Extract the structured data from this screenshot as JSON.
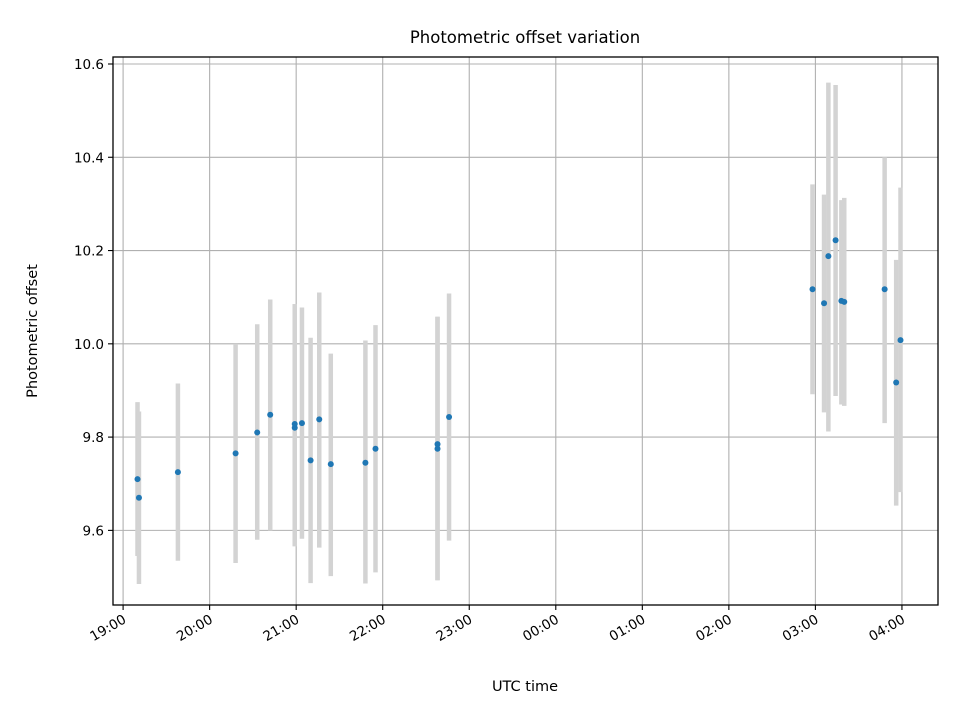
{
  "chart_data": {
    "type": "scatter",
    "title": "Photometric offset variation",
    "xlabel": "UTC time",
    "ylabel": "Photometric offset",
    "xlim": [
      "18:53",
      "04:25"
    ],
    "ylim": [
      9.44,
      10.615
    ],
    "grid": true,
    "x_ticks": [
      "19:00",
      "20:00",
      "21:00",
      "22:00",
      "23:00",
      "00:00",
      "01:00",
      "02:00",
      "03:00",
      "04:00"
    ],
    "y_ticks": [
      9.6,
      9.8,
      10.0,
      10.2,
      10.4,
      10.6
    ],
    "y_tick_labels": [
      "9.6",
      "9.8",
      "10.0",
      "10.2",
      "10.4",
      "10.6"
    ],
    "colors": {
      "marker": "#1f77b4",
      "errorbar": "#d3d3d3",
      "grid": "#b0b0b0"
    },
    "series": [
      {
        "points": [
          {
            "x": "19:10",
            "y": 9.71,
            "err": [
              9.545,
              9.875
            ]
          },
          {
            "x": "19:11",
            "y": 9.67,
            "err": [
              9.485,
              9.855
            ]
          },
          {
            "x": "19:38",
            "y": 9.725,
            "err": [
              9.535,
              9.915
            ]
          },
          {
            "x": "20:18",
            "y": 9.765,
            "err": [
              9.53,
              10.0
            ]
          },
          {
            "x": "20:33",
            "y": 9.81,
            "err": [
              9.58,
              10.042
            ]
          },
          {
            "x": "20:42",
            "y": 9.848,
            "err": [
              9.6,
              10.095
            ]
          },
          {
            "x": "20:59",
            "y": 9.82,
            "err": [
              9.566,
              10.085
            ]
          },
          {
            "x": "20:59",
            "y": 9.828,
            "err": [
              9.566,
              10.085
            ]
          },
          {
            "x": "21:04",
            "y": 9.83,
            "err": [
              9.582,
              10.078
            ]
          },
          {
            "x": "21:10",
            "y": 9.75,
            "err": [
              9.487,
              10.013
            ]
          },
          {
            "x": "21:16",
            "y": 9.838,
            "err": [
              9.563,
              10.11
            ]
          },
          {
            "x": "21:24",
            "y": 9.742,
            "err": [
              9.502,
              9.979
            ]
          },
          {
            "x": "21:48",
            "y": 9.745,
            "err": [
              9.486,
              10.007
            ]
          },
          {
            "x": "21:55",
            "y": 9.775,
            "err": [
              9.51,
              10.04
            ]
          },
          {
            "x": "22:38",
            "y": 9.775,
            "err": [
              9.493,
              10.058
            ]
          },
          {
            "x": "22:38",
            "y": 9.785,
            "err": [
              9.493,
              10.058
            ]
          },
          {
            "x": "22:46",
            "y": 9.843,
            "err": [
              9.578,
              10.108
            ]
          },
          {
            "x": "02:58",
            "y": 10.117,
            "err": [
              9.892,
              10.342
            ]
          },
          {
            "x": "03:06",
            "y": 10.087,
            "err": [
              9.853,
              10.32
            ]
          },
          {
            "x": "03:09",
            "y": 10.188,
            "err": [
              9.812,
              10.56
            ]
          },
          {
            "x": "03:14",
            "y": 10.222,
            "err": [
              9.888,
              10.555
            ]
          },
          {
            "x": "03:18",
            "y": 10.092,
            "err": [
              9.87,
              10.308
            ]
          },
          {
            "x": "03:20",
            "y": 10.09,
            "err": [
              9.867,
              10.313
            ]
          },
          {
            "x": "03:48",
            "y": 10.117,
            "err": [
              9.83,
              10.4
            ]
          },
          {
            "x": "03:56",
            "y": 9.917,
            "err": [
              9.653,
              10.18
            ]
          },
          {
            "x": "03:59",
            "y": 10.008,
            "err": [
              9.682,
              10.335
            ]
          }
        ]
      }
    ]
  }
}
